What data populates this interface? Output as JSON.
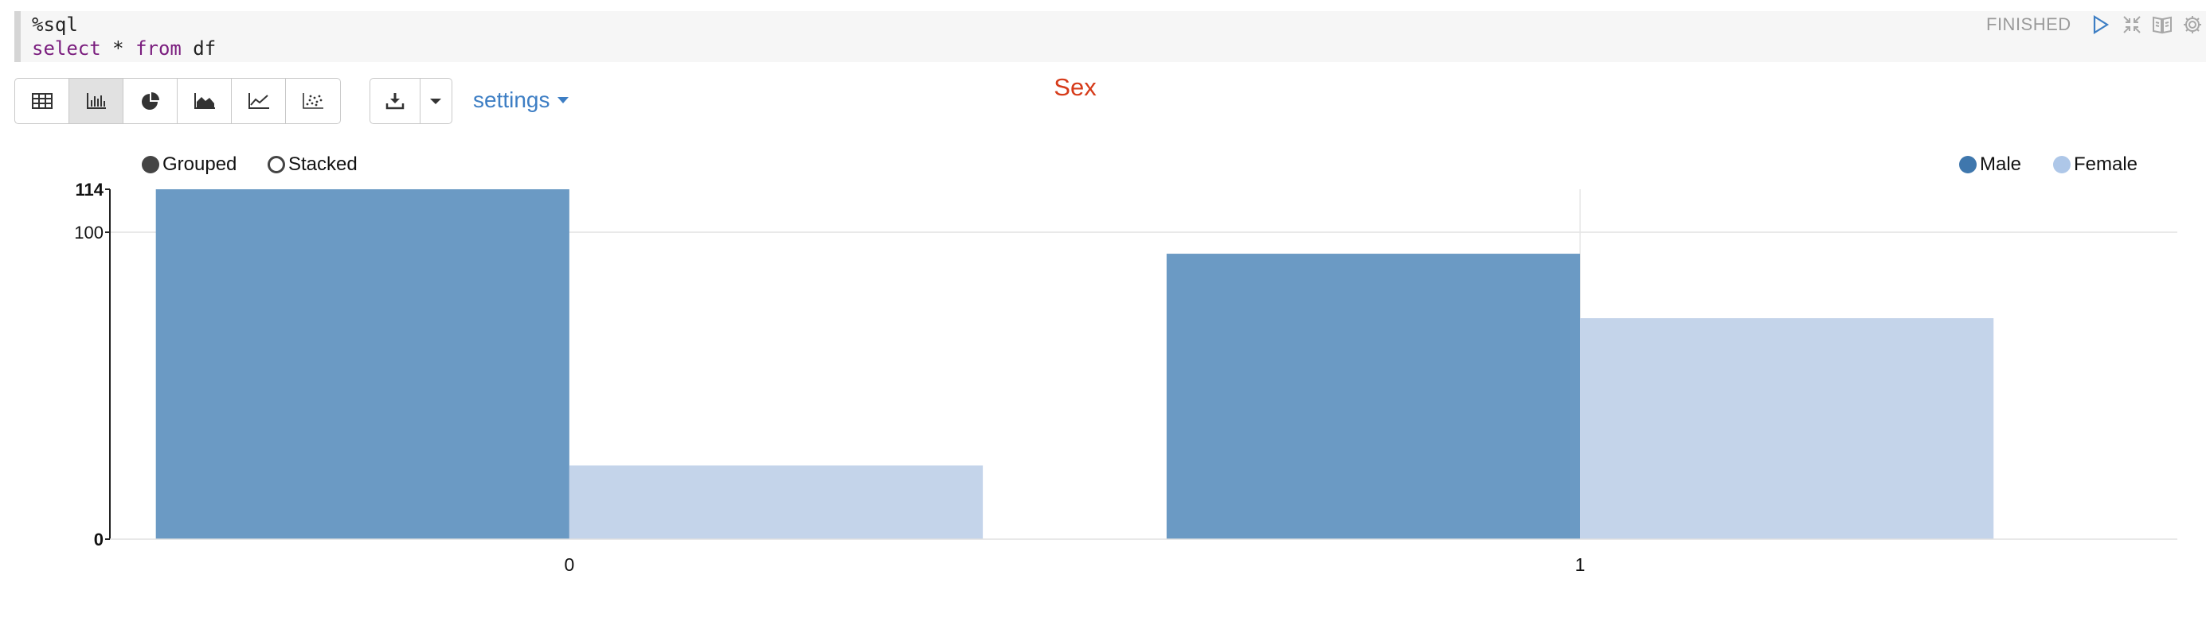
{
  "editor": {
    "magic": "%sql",
    "query": {
      "kw1": "select",
      "star": " * ",
      "kw2": "from",
      "table": " df"
    }
  },
  "paragraph": {
    "status": "FINISHED",
    "icons": [
      "run-icon",
      "collapse-icon",
      "book-icon",
      "gear-icon"
    ]
  },
  "toolbar": {
    "viz_buttons": [
      "table-icon",
      "bar-chart-icon",
      "pie-chart-icon",
      "area-chart-icon",
      "line-chart-icon",
      "scatter-chart-icon"
    ],
    "active_viz": "bar-chart-icon",
    "download_icon": "download-icon",
    "dropdown_icon": "caret-down-icon",
    "settings_label": "settings"
  },
  "chart_controls": {
    "grouped_label": "Grouped",
    "stacked_label": "Stacked",
    "selected": "Grouped"
  },
  "colors": {
    "male": "#6b9ac4",
    "female": "#c4d4ea",
    "title": "#d63b1a",
    "link": "#3d7ec4"
  },
  "chart_data": {
    "type": "bar",
    "title": "Sex",
    "mode": "grouped",
    "categories": [
      "0",
      "1"
    ],
    "series": [
      {
        "name": "Male",
        "values": [
          114,
          93
        ]
      },
      {
        "name": "Female",
        "values": [
          24,
          72
        ]
      }
    ],
    "ylim": [
      0,
      114
    ],
    "yticks": [
      {
        "value": 0,
        "label": "0"
      },
      {
        "value": 100,
        "label": "100"
      },
      {
        "value": 114,
        "label": "114"
      }
    ],
    "xlabel": "",
    "ylabel": "",
    "grid": true,
    "legend_position": "top-right"
  }
}
